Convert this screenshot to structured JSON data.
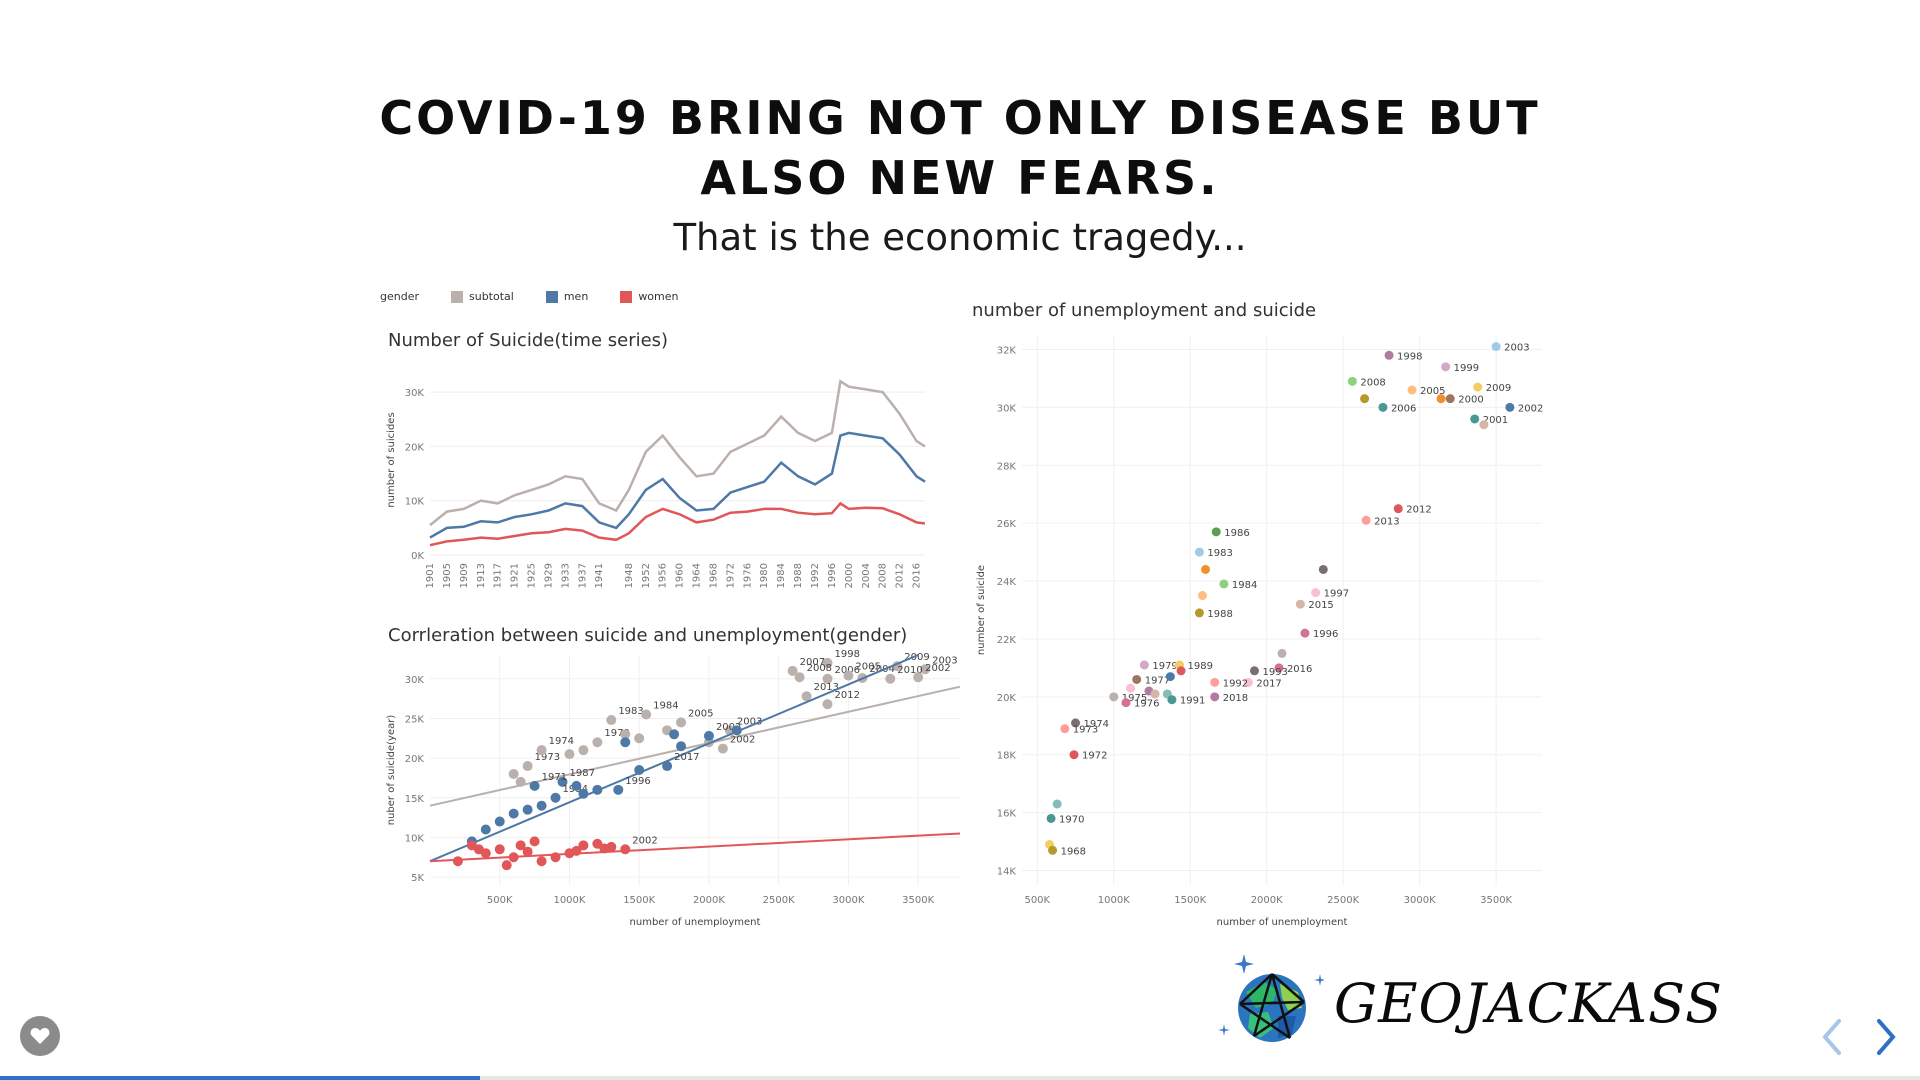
{
  "slide": {
    "title": "COVID-19 BRING NOT ONLY DISEASE BUT ALSO NEW FEARS.",
    "subtitle": "That is the economic tragedy...",
    "progress": 0.25
  },
  "legend": {
    "label": "gender",
    "items": [
      {
        "name": "subtotal",
        "color": "#bab0ac"
      },
      {
        "name": "men",
        "color": "#4e79a7"
      },
      {
        "name": "women",
        "color": "#e15759"
      }
    ]
  },
  "logo": {
    "text": "GEOJACKASS",
    "icon": "globe-icon"
  },
  "controls": {
    "favorite_icon": "heart-icon",
    "prev_icon": "chevron-left-icon",
    "next_icon": "chevron-right-icon"
  },
  "chart_data": [
    {
      "type": "line",
      "title": "Number of Suicide(time series)",
      "xlabel": "",
      "ylabel": "number of suicides",
      "ylim": [
        0,
        35000
      ],
      "yticks": [
        "0K",
        "10K",
        "20K",
        "30K"
      ],
      "xticks": [
        "1901",
        "1905",
        "1909",
        "1913",
        "1917",
        "1921",
        "1925",
        "1929",
        "1933",
        "1937",
        "1941",
        "1948",
        "1952",
        "1956",
        "1960",
        "1964",
        "1968",
        "1972",
        "1976",
        "1980",
        "1984",
        "1988",
        "1992",
        "1996",
        "2000",
        "2004",
        "2008",
        "2012",
        "2016"
      ],
      "x": [
        1901,
        1905,
        1909,
        1913,
        1917,
        1921,
        1925,
        1929,
        1933,
        1937,
        1941,
        1945,
        1948,
        1952,
        1956,
        1960,
        1964,
        1968,
        1972,
        1976,
        1980,
        1984,
        1988,
        1992,
        1996,
        1998,
        2000,
        2004,
        2008,
        2012,
        2016,
        2018
      ],
      "series": [
        {
          "name": "subtotal",
          "values": [
            5500,
            8000,
            8500,
            10000,
            9500,
            11000,
            12000,
            13000,
            14500,
            14000,
            9500,
            8200,
            12000,
            19000,
            22000,
            18000,
            14500,
            15000,
            19000,
            20500,
            22000,
            25500,
            22500,
            21000,
            22500,
            32000,
            31000,
            30500,
            30000,
            26000,
            21000,
            20000
          ]
        },
        {
          "name": "men",
          "values": [
            3200,
            5000,
            5200,
            6200,
            6000,
            7000,
            7500,
            8200,
            9500,
            9000,
            6000,
            5000,
            7500,
            12000,
            14000,
            10500,
            8200,
            8500,
            11500,
            12500,
            13500,
            17000,
            14500,
            13000,
            15000,
            22000,
            22500,
            22000,
            21500,
            18500,
            14500,
            13500
          ]
        },
        {
          "name": "women",
          "values": [
            1800,
            2500,
            2800,
            3200,
            3000,
            3500,
            4000,
            4200,
            4800,
            4500,
            3200,
            2800,
            4000,
            7000,
            8500,
            7500,
            6000,
            6500,
            7800,
            8000,
            8500,
            8500,
            7800,
            7500,
            7700,
            9500,
            8500,
            8700,
            8600,
            7500,
            6000,
            5800
          ]
        }
      ]
    },
    {
      "type": "scatter",
      "title": "Corrleration between suicide and unemployment(gender)",
      "xlabel": "number of unemployment",
      "ylabel": "nuber of suicide(year)",
      "xlim": [
        0,
        3800000
      ],
      "ylim": [
        4000,
        33000
      ],
      "xticks": [
        "500K",
        "1000K",
        "1500K",
        "2000K",
        "2500K",
        "3000K",
        "3500K"
      ],
      "yticks": [
        "5K",
        "10K",
        "15K",
        "20K",
        "25K",
        "30K"
      ],
      "series": [
        {
          "name": "subtotal",
          "trend": [
            [
              0,
              14000
            ],
            [
              3800000,
              29000
            ]
          ],
          "points": [
            {
              "x": 2600000,
              "y": 31000,
              "label": "2007"
            },
            {
              "x": 2850000,
              "y": 32000,
              "label": "1998"
            },
            {
              "x": 3350000,
              "y": 31600,
              "label": "2009"
            },
            {
              "x": 3550000,
              "y": 31200,
              "label": "2003"
            },
            {
              "x": 2650000,
              "y": 30200,
              "label": "2008"
            },
            {
              "x": 2850000,
              "y": 30000,
              "label": "2006"
            },
            {
              "x": 3000000,
              "y": 30400,
              "label": "2005"
            },
            {
              "x": 3100000,
              "y": 30100,
              "label": "2004"
            },
            {
              "x": 3300000,
              "y": 30000,
              "label": "2010"
            },
            {
              "x": 3500000,
              "y": 30200,
              "label": "2002"
            },
            {
              "x": 2700000,
              "y": 27800,
              "label": "2013"
            },
            {
              "x": 2850000,
              "y": 26800,
              "label": "2012"
            },
            {
              "x": 1300000,
              "y": 24800,
              "label": "1983"
            },
            {
              "x": 1550000,
              "y": 25500,
              "label": "1984"
            },
            {
              "x": 1800000,
              "y": 24500,
              "label": "2005"
            },
            {
              "x": 2150000,
              "y": 23500,
              "label": "2003"
            },
            {
              "x": 1200000,
              "y": 22000,
              "label": "1979"
            },
            {
              "x": 700000,
              "y": 19000,
              "label": "1973"
            },
            {
              "x": 800000,
              "y": 21000,
              "label": "1974"
            },
            {
              "x": 2100000,
              "y": 21200,
              "label": "2002"
            },
            {
              "x": 600000,
              "y": 18000
            },
            {
              "x": 650000,
              "y": 17000
            },
            {
              "x": 1000000,
              "y": 20500
            },
            {
              "x": 1100000,
              "y": 21000
            },
            {
              "x": 1400000,
              "y": 23000
            },
            {
              "x": 1500000,
              "y": 22500
            },
            {
              "x": 1700000,
              "y": 23500
            },
            {
              "x": 2000000,
              "y": 22000
            }
          ]
        },
        {
          "name": "men",
          "trend": [
            [
              0,
              7000
            ],
            [
              3500000,
              33000
            ]
          ],
          "points": [
            {
              "x": 1400000,
              "y": 22000
            },
            {
              "x": 1750000,
              "y": 23000
            },
            {
              "x": 2000000,
              "y": 22800,
              "label": "2002"
            },
            {
              "x": 1700000,
              "y": 19000,
              "label": "2017"
            },
            {
              "x": 1500000,
              "y": 18500
            },
            {
              "x": 950000,
              "y": 17000,
              "label": "1987"
            },
            {
              "x": 1350000,
              "y": 16000,
              "label": "1996"
            },
            {
              "x": 900000,
              "y": 15000,
              "label": "1994"
            },
            {
              "x": 750000,
              "y": 16500,
              "label": "1971"
            },
            {
              "x": 1200000,
              "y": 16000
            },
            {
              "x": 800000,
              "y": 14000
            },
            {
              "x": 600000,
              "y": 13000
            },
            {
              "x": 400000,
              "y": 11000
            },
            {
              "x": 500000,
              "y": 12000
            },
            {
              "x": 300000,
              "y": 9500
            },
            {
              "x": 1050000,
              "y": 16500
            },
            {
              "x": 1100000,
              "y": 15500
            },
            {
              "x": 700000,
              "y": 13500
            },
            {
              "x": 2200000,
              "y": 23500
            },
            {
              "x": 1800000,
              "y": 21500
            }
          ]
        },
        {
          "name": "women",
          "trend": [
            [
              0,
              7000
            ],
            [
              3800000,
              10500
            ]
          ],
          "points": [
            {
              "x": 300000,
              "y": 9000
            },
            {
              "x": 200000,
              "y": 7000
            },
            {
              "x": 400000,
              "y": 8000
            },
            {
              "x": 500000,
              "y": 8500
            },
            {
              "x": 600000,
              "y": 7500
            },
            {
              "x": 700000,
              "y": 8200
            },
            {
              "x": 750000,
              "y": 9500
            },
            {
              "x": 800000,
              "y": 7000
            },
            {
              "x": 900000,
              "y": 7500
            },
            {
              "x": 1000000,
              "y": 8000
            },
            {
              "x": 1100000,
              "y": 9000
            },
            {
              "x": 1200000,
              "y": 9200
            },
            {
              "x": 1300000,
              "y": 8800
            },
            {
              "x": 1400000,
              "y": 8500,
              "label": "2002"
            },
            {
              "x": 550000,
              "y": 6500
            },
            {
              "x": 350000,
              "y": 8500
            },
            {
              "x": 650000,
              "y": 9000
            },
            {
              "x": 1050000,
              "y": 8300
            },
            {
              "x": 1250000,
              "y": 8600
            }
          ]
        }
      ]
    },
    {
      "type": "scatter",
      "title": "number of unemployment and suicide",
      "xlabel": "number of unemployment",
      "ylabel": "number of suicide",
      "xlim": [
        400000,
        3800000
      ],
      "ylim": [
        13500,
        32500
      ],
      "xticks": [
        "500K",
        "1000K",
        "1500K",
        "2000K",
        "2500K",
        "3000K",
        "3500K"
      ],
      "yticks": [
        "14K",
        "16K",
        "18K",
        "20K",
        "22K",
        "24K",
        "26K",
        "28K",
        "30K",
        "32K"
      ],
      "points": [
        {
          "x": 3500000,
          "y": 32100,
          "label": "2003",
          "color": "#a0cbe8"
        },
        {
          "x": 2800000,
          "y": 31800,
          "label": "1998",
          "color": "#b07aa1"
        },
        {
          "x": 3170000,
          "y": 31400,
          "label": "1999",
          "color": "#d4a6c8"
        },
        {
          "x": 2560000,
          "y": 30900,
          "label": "2008",
          "color": "#8cd17d"
        },
        {
          "x": 3380000,
          "y": 30700,
          "label": "2009",
          "color": "#f1ce63"
        },
        {
          "x": 2950000,
          "y": 30600,
          "label": "2005",
          "color": "#ffbe7d"
        },
        {
          "x": 2640000,
          "y": 30300,
          "label": "",
          "color": "#b6992d"
        },
        {
          "x": 3140000,
          "y": 30300,
          "label": "",
          "color": "#f28e2b"
        },
        {
          "x": 3200000,
          "y": 30300,
          "label": "2000",
          "color": "#9d7660"
        },
        {
          "x": 2760000,
          "y": 30000,
          "label": "2006",
          "color": "#499894"
        },
        {
          "x": 3590000,
          "y": 30000,
          "label": "2002",
          "color": "#4e79a7"
        },
        {
          "x": 3360000,
          "y": 29600,
          "label": "2001",
          "color": "#499894"
        },
        {
          "x": 3420000,
          "y": 29400,
          "label": "",
          "color": "#d7b5a6"
        },
        {
          "x": 2860000,
          "y": 26500,
          "label": "2012",
          "color": "#e15759"
        },
        {
          "x": 2650000,
          "y": 26100,
          "label": "2013",
          "color": "#ff9d9a"
        },
        {
          "x": 1670000,
          "y": 25700,
          "label": "1986",
          "color": "#59a14f"
        },
        {
          "x": 1560000,
          "y": 25000,
          "label": "1983",
          "color": "#a0cbe8"
        },
        {
          "x": 1600000,
          "y": 24400,
          "label": "",
          "color": "#f28e2b"
        },
        {
          "x": 2370000,
          "y": 24400,
          "label": "",
          "color": "#79706e"
        },
        {
          "x": 1720000,
          "y": 23900,
          "label": "1984",
          "color": "#8cd17d"
        },
        {
          "x": 2320000,
          "y": 23600,
          "label": "1997",
          "color": "#fabfd2"
        },
        {
          "x": 1580000,
          "y": 23500,
          "label": "",
          "color": "#ffbe7d"
        },
        {
          "x": 2220000,
          "y": 23200,
          "label": "2015",
          "color": "#d7b5a6"
        },
        {
          "x": 1560000,
          "y": 22900,
          "label": "1988",
          "color": "#b6992d"
        },
        {
          "x": 2250000,
          "y": 22200,
          "label": "1996",
          "color": "#d37295"
        },
        {
          "x": 2100000,
          "y": 21500,
          "label": "",
          "color": "#bab0ac"
        },
        {
          "x": 1200000,
          "y": 21100,
          "label": "1979",
          "color": "#d4a6c8"
        },
        {
          "x": 1430000,
          "y": 21100,
          "label": "1989",
          "color": "#f1ce63"
        },
        {
          "x": 2080000,
          "y": 21000,
          "label": "2016",
          "color": "#d37295"
        },
        {
          "x": 1920000,
          "y": 20900,
          "label": "1993",
          "color": "#79706e"
        },
        {
          "x": 1150000,
          "y": 20600,
          "label": "1977",
          "color": "#9d7660"
        },
        {
          "x": 1370000,
          "y": 20700,
          "label": "",
          "color": "#4e79a7"
        },
        {
          "x": 1440000,
          "y": 20900,
          "label": "",
          "color": "#e15759"
        },
        {
          "x": 1880000,
          "y": 20500,
          "label": "2017",
          "color": "#fabfd2"
        },
        {
          "x": 1660000,
          "y": 20500,
          "label": "1992",
          "color": "#ff9d9a"
        },
        {
          "x": 1110000,
          "y": 20300,
          "label": "",
          "color": "#fabfd2"
        },
        {
          "x": 1230000,
          "y": 20200,
          "label": "",
          "color": "#b07aa1"
        },
        {
          "x": 1270000,
          "y": 20100,
          "label": "",
          "color": "#d7b5a6"
        },
        {
          "x": 1350000,
          "y": 20100,
          "label": "",
          "color": "#86bcb6"
        },
        {
          "x": 1000000,
          "y": 20000,
          "label": "1975",
          "color": "#bab0ac"
        },
        {
          "x": 1380000,
          "y": 19900,
          "label": "1991",
          "color": "#499894"
        },
        {
          "x": 1660000,
          "y": 20000,
          "label": "2018",
          "color": "#b07aa1"
        },
        {
          "x": 1080000,
          "y": 19800,
          "label": "1976",
          "color": "#d37295"
        },
        {
          "x": 750000,
          "y": 19100,
          "label": "1974",
          "color": "#79706e"
        },
        {
          "x": 680000,
          "y": 18900,
          "label": "1973",
          "color": "#ff9d9a"
        },
        {
          "x": 740000,
          "y": 18000,
          "label": "1972",
          "color": "#e15759"
        },
        {
          "x": 630000,
          "y": 16300,
          "label": "",
          "color": "#86bcb6"
        },
        {
          "x": 590000,
          "y": 15800,
          "label": "1970",
          "color": "#499894"
        },
        {
          "x": 580000,
          "y": 14900,
          "label": "",
          "color": "#f1ce63"
        },
        {
          "x": 600000,
          "y": 14700,
          "label": "1968",
          "color": "#b6992d"
        }
      ]
    }
  ]
}
